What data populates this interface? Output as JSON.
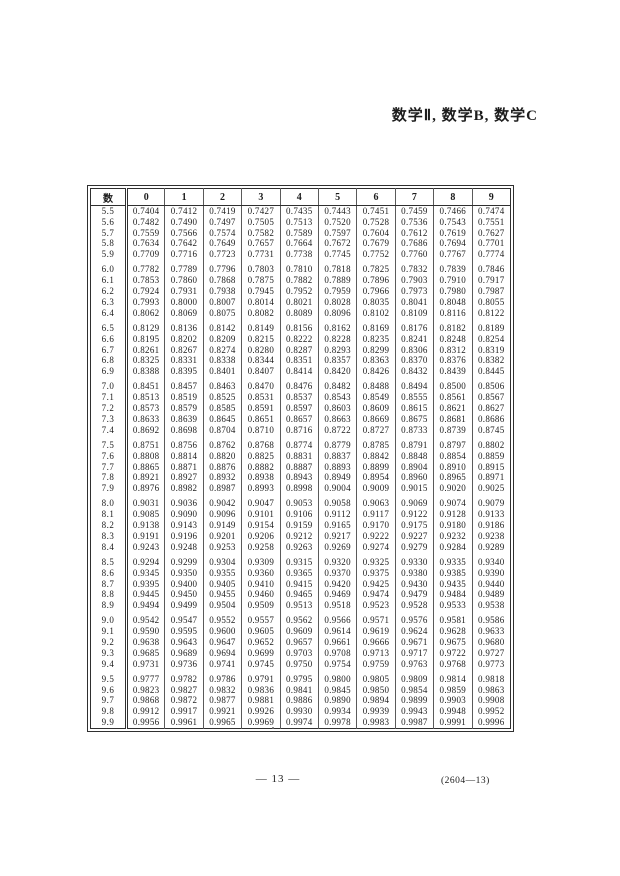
{
  "header": {
    "title": "数学Ⅱ, 数学B, 数学C"
  },
  "table": {
    "corner_label": "数",
    "col_headers": [
      "0",
      "1",
      "2",
      "3",
      "4",
      "5",
      "6",
      "7",
      "8",
      "9"
    ],
    "rows": [
      {
        "n": "5.5",
        "v": [
          "0.7404",
          "0.7412",
          "0.7419",
          "0.7427",
          "0.7435",
          "0.7443",
          "0.7451",
          "0.7459",
          "0.7466",
          "0.7474"
        ]
      },
      {
        "n": "5.6",
        "v": [
          "0.7482",
          "0.7490",
          "0.7497",
          "0.7505",
          "0.7513",
          "0.7520",
          "0.7528",
          "0.7536",
          "0.7543",
          "0.7551"
        ]
      },
      {
        "n": "5.7",
        "v": [
          "0.7559",
          "0.7566",
          "0.7574",
          "0.7582",
          "0.7589",
          "0.7597",
          "0.7604",
          "0.7612",
          "0.7619",
          "0.7627"
        ]
      },
      {
        "n": "5.8",
        "v": [
          "0.7634",
          "0.7642",
          "0.7649",
          "0.7657",
          "0.7664",
          "0.7672",
          "0.7679",
          "0.7686",
          "0.7694",
          "0.7701"
        ]
      },
      {
        "n": "5.9",
        "v": [
          "0.7709",
          "0.7716",
          "0.7723",
          "0.7731",
          "0.7738",
          "0.7745",
          "0.7752",
          "0.7760",
          "0.7767",
          "0.7774"
        ]
      },
      {
        "n": "6.0",
        "v": [
          "0.7782",
          "0.7789",
          "0.7796",
          "0.7803",
          "0.7810",
          "0.7818",
          "0.7825",
          "0.7832",
          "0.7839",
          "0.7846"
        ]
      },
      {
        "n": "6.1",
        "v": [
          "0.7853",
          "0.7860",
          "0.7868",
          "0.7875",
          "0.7882",
          "0.7889",
          "0.7896",
          "0.7903",
          "0.7910",
          "0.7917"
        ]
      },
      {
        "n": "6.2",
        "v": [
          "0.7924",
          "0.7931",
          "0.7938",
          "0.7945",
          "0.7952",
          "0.7959",
          "0.7966",
          "0.7973",
          "0.7980",
          "0.7987"
        ]
      },
      {
        "n": "6.3",
        "v": [
          "0.7993",
          "0.8000",
          "0.8007",
          "0.8014",
          "0.8021",
          "0.8028",
          "0.8035",
          "0.8041",
          "0.8048",
          "0.8055"
        ]
      },
      {
        "n": "6.4",
        "v": [
          "0.8062",
          "0.8069",
          "0.8075",
          "0.8082",
          "0.8089",
          "0.8096",
          "0.8102",
          "0.8109",
          "0.8116",
          "0.8122"
        ]
      },
      {
        "n": "6.5",
        "v": [
          "0.8129",
          "0.8136",
          "0.8142",
          "0.8149",
          "0.8156",
          "0.8162",
          "0.8169",
          "0.8176",
          "0.8182",
          "0.8189"
        ]
      },
      {
        "n": "6.6",
        "v": [
          "0.8195",
          "0.8202",
          "0.8209",
          "0.8215",
          "0.8222",
          "0.8228",
          "0.8235",
          "0.8241",
          "0.8248",
          "0.8254"
        ]
      },
      {
        "n": "6.7",
        "v": [
          "0.8261",
          "0.8267",
          "0.8274",
          "0.8280",
          "0.8287",
          "0.8293",
          "0.8299",
          "0.8306",
          "0.8312",
          "0.8319"
        ]
      },
      {
        "n": "6.8",
        "v": [
          "0.8325",
          "0.8331",
          "0.8338",
          "0.8344",
          "0.8351",
          "0.8357",
          "0.8363",
          "0.8370",
          "0.8376",
          "0.8382"
        ]
      },
      {
        "n": "6.9",
        "v": [
          "0.8388",
          "0.8395",
          "0.8401",
          "0.8407",
          "0.8414",
          "0.8420",
          "0.8426",
          "0.8432",
          "0.8439",
          "0.8445"
        ]
      },
      {
        "n": "7.0",
        "v": [
          "0.8451",
          "0.8457",
          "0.8463",
          "0.8470",
          "0.8476",
          "0.8482",
          "0.8488",
          "0.8494",
          "0.8500",
          "0.8506"
        ]
      },
      {
        "n": "7.1",
        "v": [
          "0.8513",
          "0.8519",
          "0.8525",
          "0.8531",
          "0.8537",
          "0.8543",
          "0.8549",
          "0.8555",
          "0.8561",
          "0.8567"
        ]
      },
      {
        "n": "7.2",
        "v": [
          "0.8573",
          "0.8579",
          "0.8585",
          "0.8591",
          "0.8597",
          "0.8603",
          "0.8609",
          "0.8615",
          "0.8621",
          "0.8627"
        ]
      },
      {
        "n": "7.3",
        "v": [
          "0.8633",
          "0.8639",
          "0.8645",
          "0.8651",
          "0.8657",
          "0.8663",
          "0.8669",
          "0.8675",
          "0.8681",
          "0.8686"
        ]
      },
      {
        "n": "7.4",
        "v": [
          "0.8692",
          "0.8698",
          "0.8704",
          "0.8710",
          "0.8716",
          "0.8722",
          "0.8727",
          "0.8733",
          "0.8739",
          "0.8745"
        ]
      },
      {
        "n": "7.5",
        "v": [
          "0.8751",
          "0.8756",
          "0.8762",
          "0.8768",
          "0.8774",
          "0.8779",
          "0.8785",
          "0.8791",
          "0.8797",
          "0.8802"
        ]
      },
      {
        "n": "7.6",
        "v": [
          "0.8808",
          "0.8814",
          "0.8820",
          "0.8825",
          "0.8831",
          "0.8837",
          "0.8842",
          "0.8848",
          "0.8854",
          "0.8859"
        ]
      },
      {
        "n": "7.7",
        "v": [
          "0.8865",
          "0.8871",
          "0.8876",
          "0.8882",
          "0.8887",
          "0.8893",
          "0.8899",
          "0.8904",
          "0.8910",
          "0.8915"
        ]
      },
      {
        "n": "7.8",
        "v": [
          "0.8921",
          "0.8927",
          "0.8932",
          "0.8938",
          "0.8943",
          "0.8949",
          "0.8954",
          "0.8960",
          "0.8965",
          "0.8971"
        ]
      },
      {
        "n": "7.9",
        "v": [
          "0.8976",
          "0.8982",
          "0.8987",
          "0.8993",
          "0.8998",
          "0.9004",
          "0.9009",
          "0.9015",
          "0.9020",
          "0.9025"
        ]
      },
      {
        "n": "8.0",
        "v": [
          "0.9031",
          "0.9036",
          "0.9042",
          "0.9047",
          "0.9053",
          "0.9058",
          "0.9063",
          "0.9069",
          "0.9074",
          "0.9079"
        ]
      },
      {
        "n": "8.1",
        "v": [
          "0.9085",
          "0.9090",
          "0.9096",
          "0.9101",
          "0.9106",
          "0.9112",
          "0.9117",
          "0.9122",
          "0.9128",
          "0.9133"
        ]
      },
      {
        "n": "8.2",
        "v": [
          "0.9138",
          "0.9143",
          "0.9149",
          "0.9154",
          "0.9159",
          "0.9165",
          "0.9170",
          "0.9175",
          "0.9180",
          "0.9186"
        ]
      },
      {
        "n": "8.3",
        "v": [
          "0.9191",
          "0.9196",
          "0.9201",
          "0.9206",
          "0.9212",
          "0.9217",
          "0.9222",
          "0.9227",
          "0.9232",
          "0.9238"
        ]
      },
      {
        "n": "8.4",
        "v": [
          "0.9243",
          "0.9248",
          "0.9253",
          "0.9258",
          "0.9263",
          "0.9269",
          "0.9274",
          "0.9279",
          "0.9284",
          "0.9289"
        ]
      },
      {
        "n": "8.5",
        "v": [
          "0.9294",
          "0.9299",
          "0.9304",
          "0.9309",
          "0.9315",
          "0.9320",
          "0.9325",
          "0.9330",
          "0.9335",
          "0.9340"
        ]
      },
      {
        "n": "8.6",
        "v": [
          "0.9345",
          "0.9350",
          "0.9355",
          "0.9360",
          "0.9365",
          "0.9370",
          "0.9375",
          "0.9380",
          "0.9385",
          "0.9390"
        ]
      },
      {
        "n": "8.7",
        "v": [
          "0.9395",
          "0.9400",
          "0.9405",
          "0.9410",
          "0.9415",
          "0.9420",
          "0.9425",
          "0.9430",
          "0.9435",
          "0.9440"
        ]
      },
      {
        "n": "8.8",
        "v": [
          "0.9445",
          "0.9450",
          "0.9455",
          "0.9460",
          "0.9465",
          "0.9469",
          "0.9474",
          "0.9479",
          "0.9484",
          "0.9489"
        ]
      },
      {
        "n": "8.9",
        "v": [
          "0.9494",
          "0.9499",
          "0.9504",
          "0.9509",
          "0.9513",
          "0.9518",
          "0.9523",
          "0.9528",
          "0.9533",
          "0.9538"
        ]
      },
      {
        "n": "9.0",
        "v": [
          "0.9542",
          "0.9547",
          "0.9552",
          "0.9557",
          "0.9562",
          "0.9566",
          "0.9571",
          "0.9576",
          "0.9581",
          "0.9586"
        ]
      },
      {
        "n": "9.1",
        "v": [
          "0.9590",
          "0.9595",
          "0.9600",
          "0.9605",
          "0.9609",
          "0.9614",
          "0.9619",
          "0.9624",
          "0.9628",
          "0.9633"
        ]
      },
      {
        "n": "9.2",
        "v": [
          "0.9638",
          "0.9643",
          "0.9647",
          "0.9652",
          "0.9657",
          "0.9661",
          "0.9666",
          "0.9671",
          "0.9675",
          "0.9680"
        ]
      },
      {
        "n": "9.3",
        "v": [
          "0.9685",
          "0.9689",
          "0.9694",
          "0.9699",
          "0.9703",
          "0.9708",
          "0.9713",
          "0.9717",
          "0.9722",
          "0.9727"
        ]
      },
      {
        "n": "9.4",
        "v": [
          "0.9731",
          "0.9736",
          "0.9741",
          "0.9745",
          "0.9750",
          "0.9754",
          "0.9759",
          "0.9763",
          "0.9768",
          "0.9773"
        ]
      },
      {
        "n": "9.5",
        "v": [
          "0.9777",
          "0.9782",
          "0.9786",
          "0.9791",
          "0.9795",
          "0.9800",
          "0.9805",
          "0.9809",
          "0.9814",
          "0.9818"
        ]
      },
      {
        "n": "9.6",
        "v": [
          "0.9823",
          "0.9827",
          "0.9832",
          "0.9836",
          "0.9841",
          "0.9845",
          "0.9850",
          "0.9854",
          "0.9859",
          "0.9863"
        ]
      },
      {
        "n": "9.7",
        "v": [
          "0.9868",
          "0.9872",
          "0.9877",
          "0.9881",
          "0.9886",
          "0.9890",
          "0.9894",
          "0.9899",
          "0.9903",
          "0.9908"
        ]
      },
      {
        "n": "9.8",
        "v": [
          "0.9912",
          "0.9917",
          "0.9921",
          "0.9926",
          "0.9930",
          "0.9934",
          "0.9939",
          "0.9943",
          "0.9948",
          "0.9952"
        ]
      },
      {
        "n": "9.9",
        "v": [
          "0.9956",
          "0.9961",
          "0.9965",
          "0.9969",
          "0.9974",
          "0.9978",
          "0.9983",
          "0.9987",
          "0.9991",
          "0.9996"
        ]
      }
    ]
  },
  "footer": {
    "page_number": "— 13 —",
    "code": "(2604—13)"
  }
}
